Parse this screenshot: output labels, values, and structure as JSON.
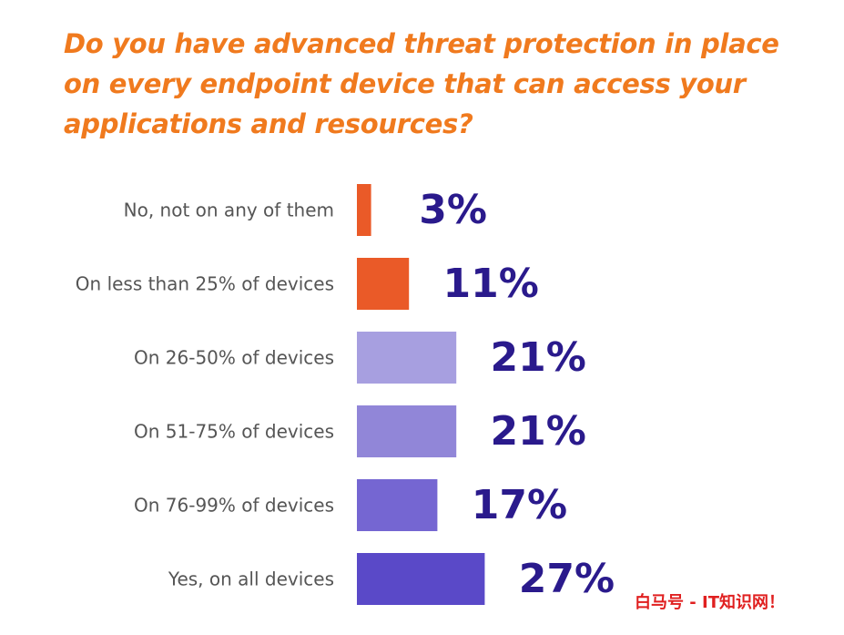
{
  "chart_data": {
    "type": "bar",
    "orientation": "horizontal",
    "title": "Do you have advanced threat protection in place on every endpoint device that can access your applications and resources?",
    "categories": [
      "No, not on any of them",
      "On less than 25% of devices",
      "On 26-50% of devices",
      "On 51-75% of devices",
      "On 76-99% of devices",
      "Yes, on all devices"
    ],
    "values": [
      3,
      11,
      21,
      21,
      17,
      27
    ],
    "value_labels": [
      "3%",
      "11%",
      "21%",
      "21%",
      "17%",
      "27%"
    ],
    "unit": "%",
    "colors": [
      "#ea5a28",
      "#ea5a28",
      "#a79fe0",
      "#9186d8",
      "#7566d2",
      "#5a49c8"
    ],
    "value_color": "#2a1a8c",
    "title_color": "#f07a1e",
    "grid": false,
    "legend": "none"
  },
  "watermark": "白马号 - IT知识网！"
}
